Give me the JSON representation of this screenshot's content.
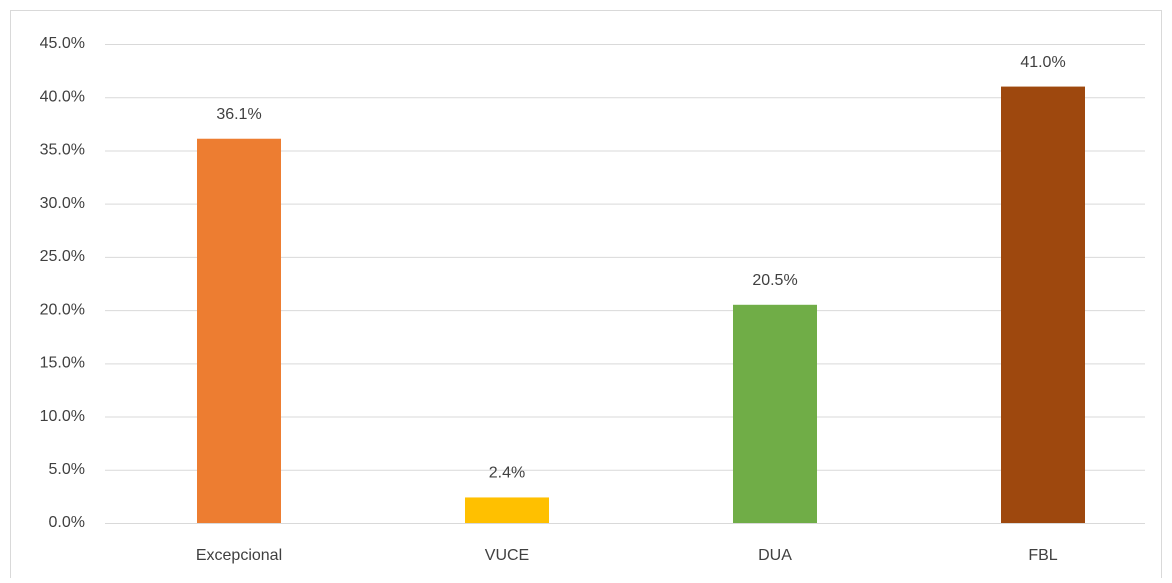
{
  "chart_data": {
    "type": "bar",
    "categories": [
      "Excepcional",
      "VUCE",
      "DUA",
      "FBL"
    ],
    "values": [
      36.1,
      2.4,
      20.5,
      41.0
    ],
    "value_labels": [
      "36.1%",
      "2.4%",
      "20.5%",
      "41.0%"
    ],
    "colors": [
      "#ed7d31",
      "#ffc000",
      "#70ad47",
      "#9e480e"
    ],
    "ylim": [
      0,
      45
    ],
    "yticks": [
      {
        "value": 0,
        "label": "0.0%"
      },
      {
        "value": 5,
        "label": "5.0%"
      },
      {
        "value": 10,
        "label": "10.0%"
      },
      {
        "value": 15,
        "label": "15.0%"
      },
      {
        "value": 20,
        "label": "20.0%"
      },
      {
        "value": 25,
        "label": "25.0%"
      },
      {
        "value": 30,
        "label": "30.0%"
      },
      {
        "value": 35,
        "label": "35.0%"
      },
      {
        "value": 40,
        "label": "40.0%"
      },
      {
        "value": 45,
        "label": "45.0%"
      }
    ],
    "grid": true
  }
}
